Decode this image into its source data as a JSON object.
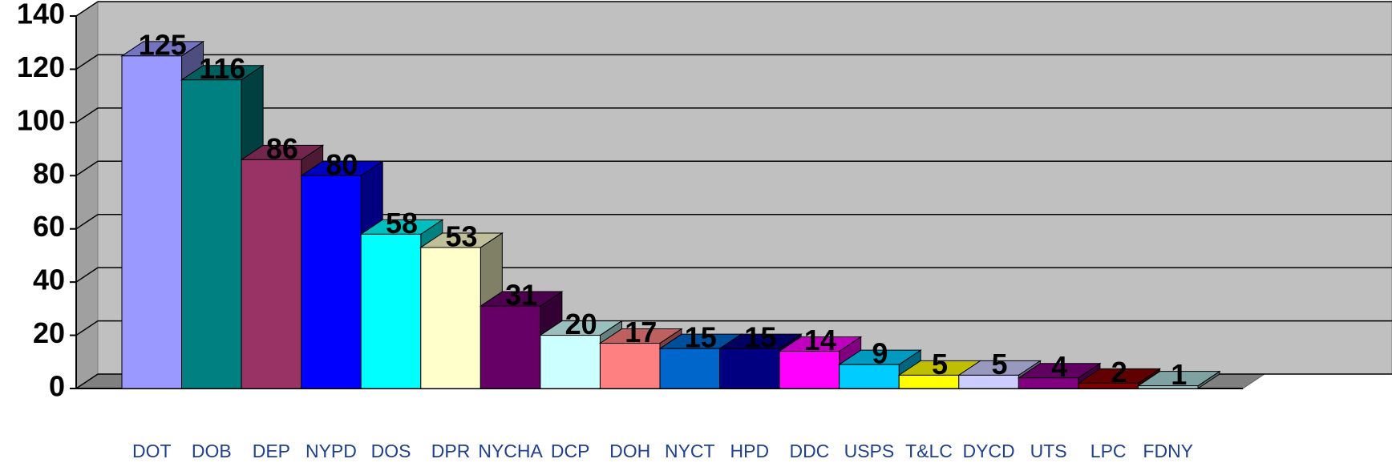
{
  "chart_data": {
    "type": "bar3d",
    "categories": [
      "DOT",
      "DOB",
      "DEP",
      "NYPD",
      "DOS",
      "DPR",
      "NYCHA",
      "DCP",
      "DOH",
      "NYCT",
      "HPD",
      "DDC",
      "USPS",
      "T&LC",
      "DYCD",
      "UTS",
      "LPC",
      "FDNY"
    ],
    "values": [
      125,
      116,
      86,
      80,
      58,
      53,
      31,
      20,
      17,
      15,
      15,
      14,
      9,
      5,
      5,
      4,
      2,
      1
    ],
    "colors": [
      "#9999ff",
      "#008080",
      "#993366",
      "#0000ff",
      "#00ffff",
      "#ffffcc",
      "#660066",
      "#ccffff",
      "#ff8080",
      "#0066cc",
      "#000080",
      "#ff00ff",
      "#00ccff",
      "#ffff00",
      "#ccccff",
      "#800080",
      "#800000",
      "#a8d8d8"
    ],
    "ylim": [
      0,
      140
    ],
    "yticks": [
      0,
      20,
      40,
      60,
      80,
      100,
      120,
      140
    ],
    "grid": true
  }
}
